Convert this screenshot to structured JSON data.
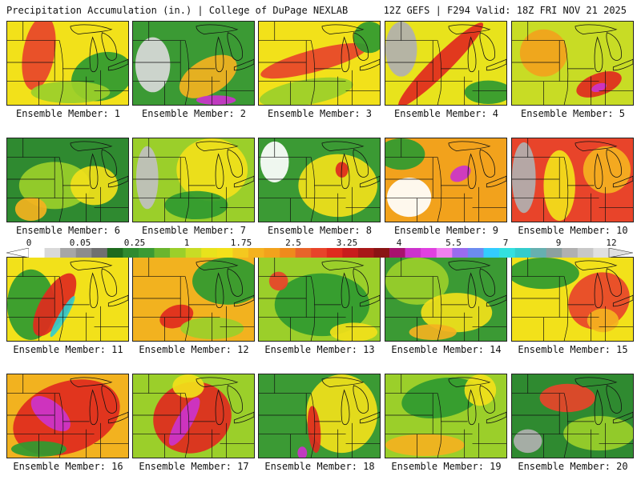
{
  "header": {
    "left_title": "Precipitation Accumulation (in.) | College of DuPage NEXLAB",
    "right_title": "12Z GEFS | F294 Valid: 18Z FRI NOV 21 2025"
  },
  "label_prefix": "Ensemble Member:",
  "members": [
    {
      "number": "1",
      "label": "Ensemble Member: 1",
      "base": "#f2e11a",
      "features": [
        "#e8442a",
        "#2f9a30",
        "#9bcf2a"
      ]
    },
    {
      "number": "2",
      "label": "Ensemble Member: 2",
      "base": "#3b9a34",
      "features": [
        "#d9d9d9",
        "#f4b21f",
        "#cc33cc"
      ]
    },
    {
      "number": "3",
      "label": "Ensemble Member: 3",
      "base": "#f2e11a",
      "features": [
        "#e8442a",
        "#2f9a30",
        "#9bcf2a"
      ]
    },
    {
      "number": "4",
      "label": "Ensemble Member: 4",
      "base": "#e8e31c",
      "features": [
        "#b0b0b0",
        "#e02a1e",
        "#2f9a30"
      ]
    },
    {
      "number": "5",
      "label": "Ensemble Member: 5",
      "base": "#c8dc25",
      "features": [
        "#f2a21c",
        "#e02a1e",
        "#cc33cc"
      ]
    },
    {
      "number": "6",
      "label": "Ensemble Member: 6",
      "base": "#2f8a30",
      "features": [
        "#9bcf2a",
        "#f2e11a",
        "#f4b21f"
      ]
    },
    {
      "number": "7",
      "label": "Ensemble Member: 7",
      "base": "#9bcf2a",
      "features": [
        "#c0c0c0",
        "#f2e11a",
        "#2f9a30"
      ]
    },
    {
      "number": "8",
      "label": "Ensemble Member: 8",
      "base": "#3b9a34",
      "features": [
        "#ffffff",
        "#f2e11a",
        "#e02a1e"
      ]
    },
    {
      "number": "9",
      "label": "Ensemble Member: 9",
      "base": "#f2a21c",
      "features": [
        "#ffffff",
        "#2f9a30",
        "#cc33cc"
      ]
    },
    {
      "number": "10",
      "label": "Ensemble Member: 10",
      "base": "#e8442a",
      "features": [
        "#b0b0b0",
        "#f2e11a",
        "#f4b21f"
      ]
    },
    {
      "number": "11",
      "label": "Ensemble Member: 11",
      "base": "#f2e11a",
      "features": [
        "#2f9a30",
        "#e02a1e",
        "#33cccc"
      ]
    },
    {
      "number": "12",
      "label": "Ensemble Member: 12",
      "base": "#f2b21f",
      "features": [
        "#2f9a30",
        "#e02a1e",
        "#9bcf2a"
      ]
    },
    {
      "number": "13",
      "label": "Ensemble Member: 13",
      "base": "#9bcf2a",
      "features": [
        "#2f9a30",
        "#f2e11a",
        "#e8442a"
      ]
    },
    {
      "number": "14",
      "label": "Ensemble Member: 14",
      "base": "#3b9a34",
      "features": [
        "#9bcf2a",
        "#f2e11a",
        "#f4b21f"
      ]
    },
    {
      "number": "15",
      "label": "Ensemble Member: 15",
      "base": "#f2e11a",
      "features": [
        "#2f9a30",
        "#e8442a",
        "#f4b21f"
      ]
    },
    {
      "number": "16",
      "label": "Ensemble Member: 16",
      "base": "#f2b21f",
      "features": [
        "#e02a1e",
        "#cc33cc",
        "#2f9a30"
      ]
    },
    {
      "number": "17",
      "label": "Ensemble Member: 17",
      "base": "#9bcf2a",
      "features": [
        "#e02a1e",
        "#cc33cc",
        "#f2e11a"
      ]
    },
    {
      "number": "18",
      "label": "Ensemble Member: 18",
      "base": "#3b9a34",
      "features": [
        "#f2e11a",
        "#e02a1e",
        "#cc33cc"
      ]
    },
    {
      "number": "19",
      "label": "Ensemble Member: 19",
      "base": "#9bcf2a",
      "features": [
        "#2f9a30",
        "#f2e11a",
        "#f4b21f"
      ]
    },
    {
      "number": "20",
      "label": "Ensemble Member: 20",
      "base": "#2f8a30",
      "features": [
        "#b0b0b0",
        "#9bcf2a",
        "#e8442a"
      ]
    }
  ],
  "colorbar": {
    "tick_labels": [
      "0",
      "0.05",
      "0.25",
      "1",
      "1.75",
      "2.5",
      "3.25",
      "4",
      "5.5",
      "7",
      "9",
      "12"
    ],
    "colors": [
      "#ffffff",
      "#d9d9d9",
      "#a6a6a6",
      "#8c8c8c",
      "#707070",
      "#1e6b1e",
      "#2f8a30",
      "#3b9a34",
      "#6bb52e",
      "#9bcf2a",
      "#c8dc25",
      "#e8e31c",
      "#f2e11a",
      "#f4c81f",
      "#f4b21f",
      "#f2a21c",
      "#ef8a1c",
      "#e8642a",
      "#e8442a",
      "#e02a1e",
      "#c81c1c",
      "#a81818",
      "#8a1414",
      "#a8126e",
      "#cc33cc",
      "#e040e0",
      "#f080f0",
      "#9a6cf0",
      "#6c8cf0",
      "#33ccff",
      "#33e0e0",
      "#33cccc",
      "#66b0b0",
      "#8ca0a0",
      "#b0b0b0",
      "#c8c8c8",
      "#e0e0e0"
    ]
  }
}
